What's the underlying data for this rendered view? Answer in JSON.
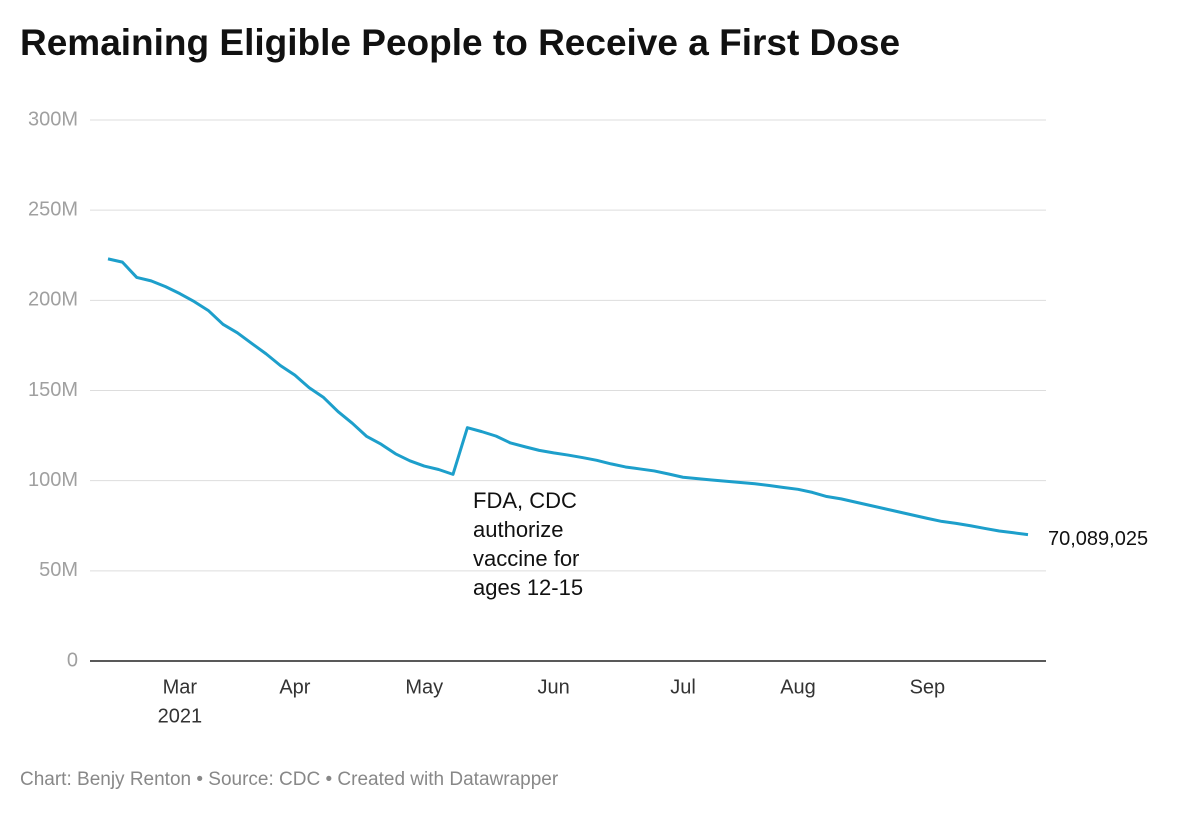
{
  "chart_data": {
    "type": "line",
    "title": "Remaining Eligible People to Receive a First Dose",
    "categories": [
      null,
      null,
      null,
      null,
      null,
      "Mar",
      null,
      null,
      null,
      null,
      null,
      null,
      null,
      "Apr",
      null,
      null,
      null,
      null,
      null,
      null,
      null,
      null,
      "May",
      null,
      null,
      null,
      null,
      null,
      null,
      null,
      null,
      "Jun",
      null,
      null,
      null,
      null,
      null,
      null,
      null,
      null,
      "Jul",
      null,
      null,
      null,
      null,
      null,
      null,
      null,
      "Aug",
      null,
      null,
      null,
      null,
      null,
      null,
      null,
      null,
      "Sep",
      null,
      null,
      null,
      null,
      null,
      null,
      null
    ],
    "year": "2021",
    "values": [
      223000000,
      221200000,
      212700000,
      210800000,
      207600000,
      203700000,
      199300000,
      194200000,
      186700000,
      182000000,
      176100000,
      170300000,
      163800000,
      158500000,
      151500000,
      146100000,
      138300000,
      131800000,
      124500000,
      120200000,
      114900000,
      111000000,
      108100000,
      106200000,
      103500000,
      129400000,
      127200000,
      124700000,
      120900000,
      118800000,
      116800000,
      115400000,
      114200000,
      112800000,
      111300000,
      109300000,
      107600000,
      106500000,
      105400000,
      103700000,
      101900000,
      101100000,
      100400000,
      99700000,
      99000000,
      98300000,
      97300000,
      96200000,
      95200000,
      93500000,
      91200000,
      89900000,
      88100000,
      86300000,
      84500000,
      82700000,
      80900000,
      79100000,
      77400000,
      76300000,
      75000000,
      73500000,
      72100000,
      71100000,
      70089025
    ],
    "end_label": {
      "value": 70089025,
      "label": "70,089,025"
    },
    "color": "#1d9fcb",
    "ylim": [
      0,
      300000000
    ],
    "yticks": [
      0,
      {
        "value": 50000000,
        "label": "50M"
      },
      {
        "value": 100000000,
        "label": "100M"
      },
      {
        "value": 150000000,
        "label": "150M"
      },
      {
        "value": 200000000,
        "label": "200M"
      },
      {
        "value": 250000000,
        "label": "250M"
      },
      {
        "value": 300000000,
        "label": "300M"
      }
    ],
    "grid": true,
    "annotation_lines": [
      "FDA, CDC",
      "authorize",
      "vaccine for",
      "ages 12-15"
    ],
    "footer": "Chart: Benjy Renton • Source: CDC • Created with Datawrapper"
  }
}
